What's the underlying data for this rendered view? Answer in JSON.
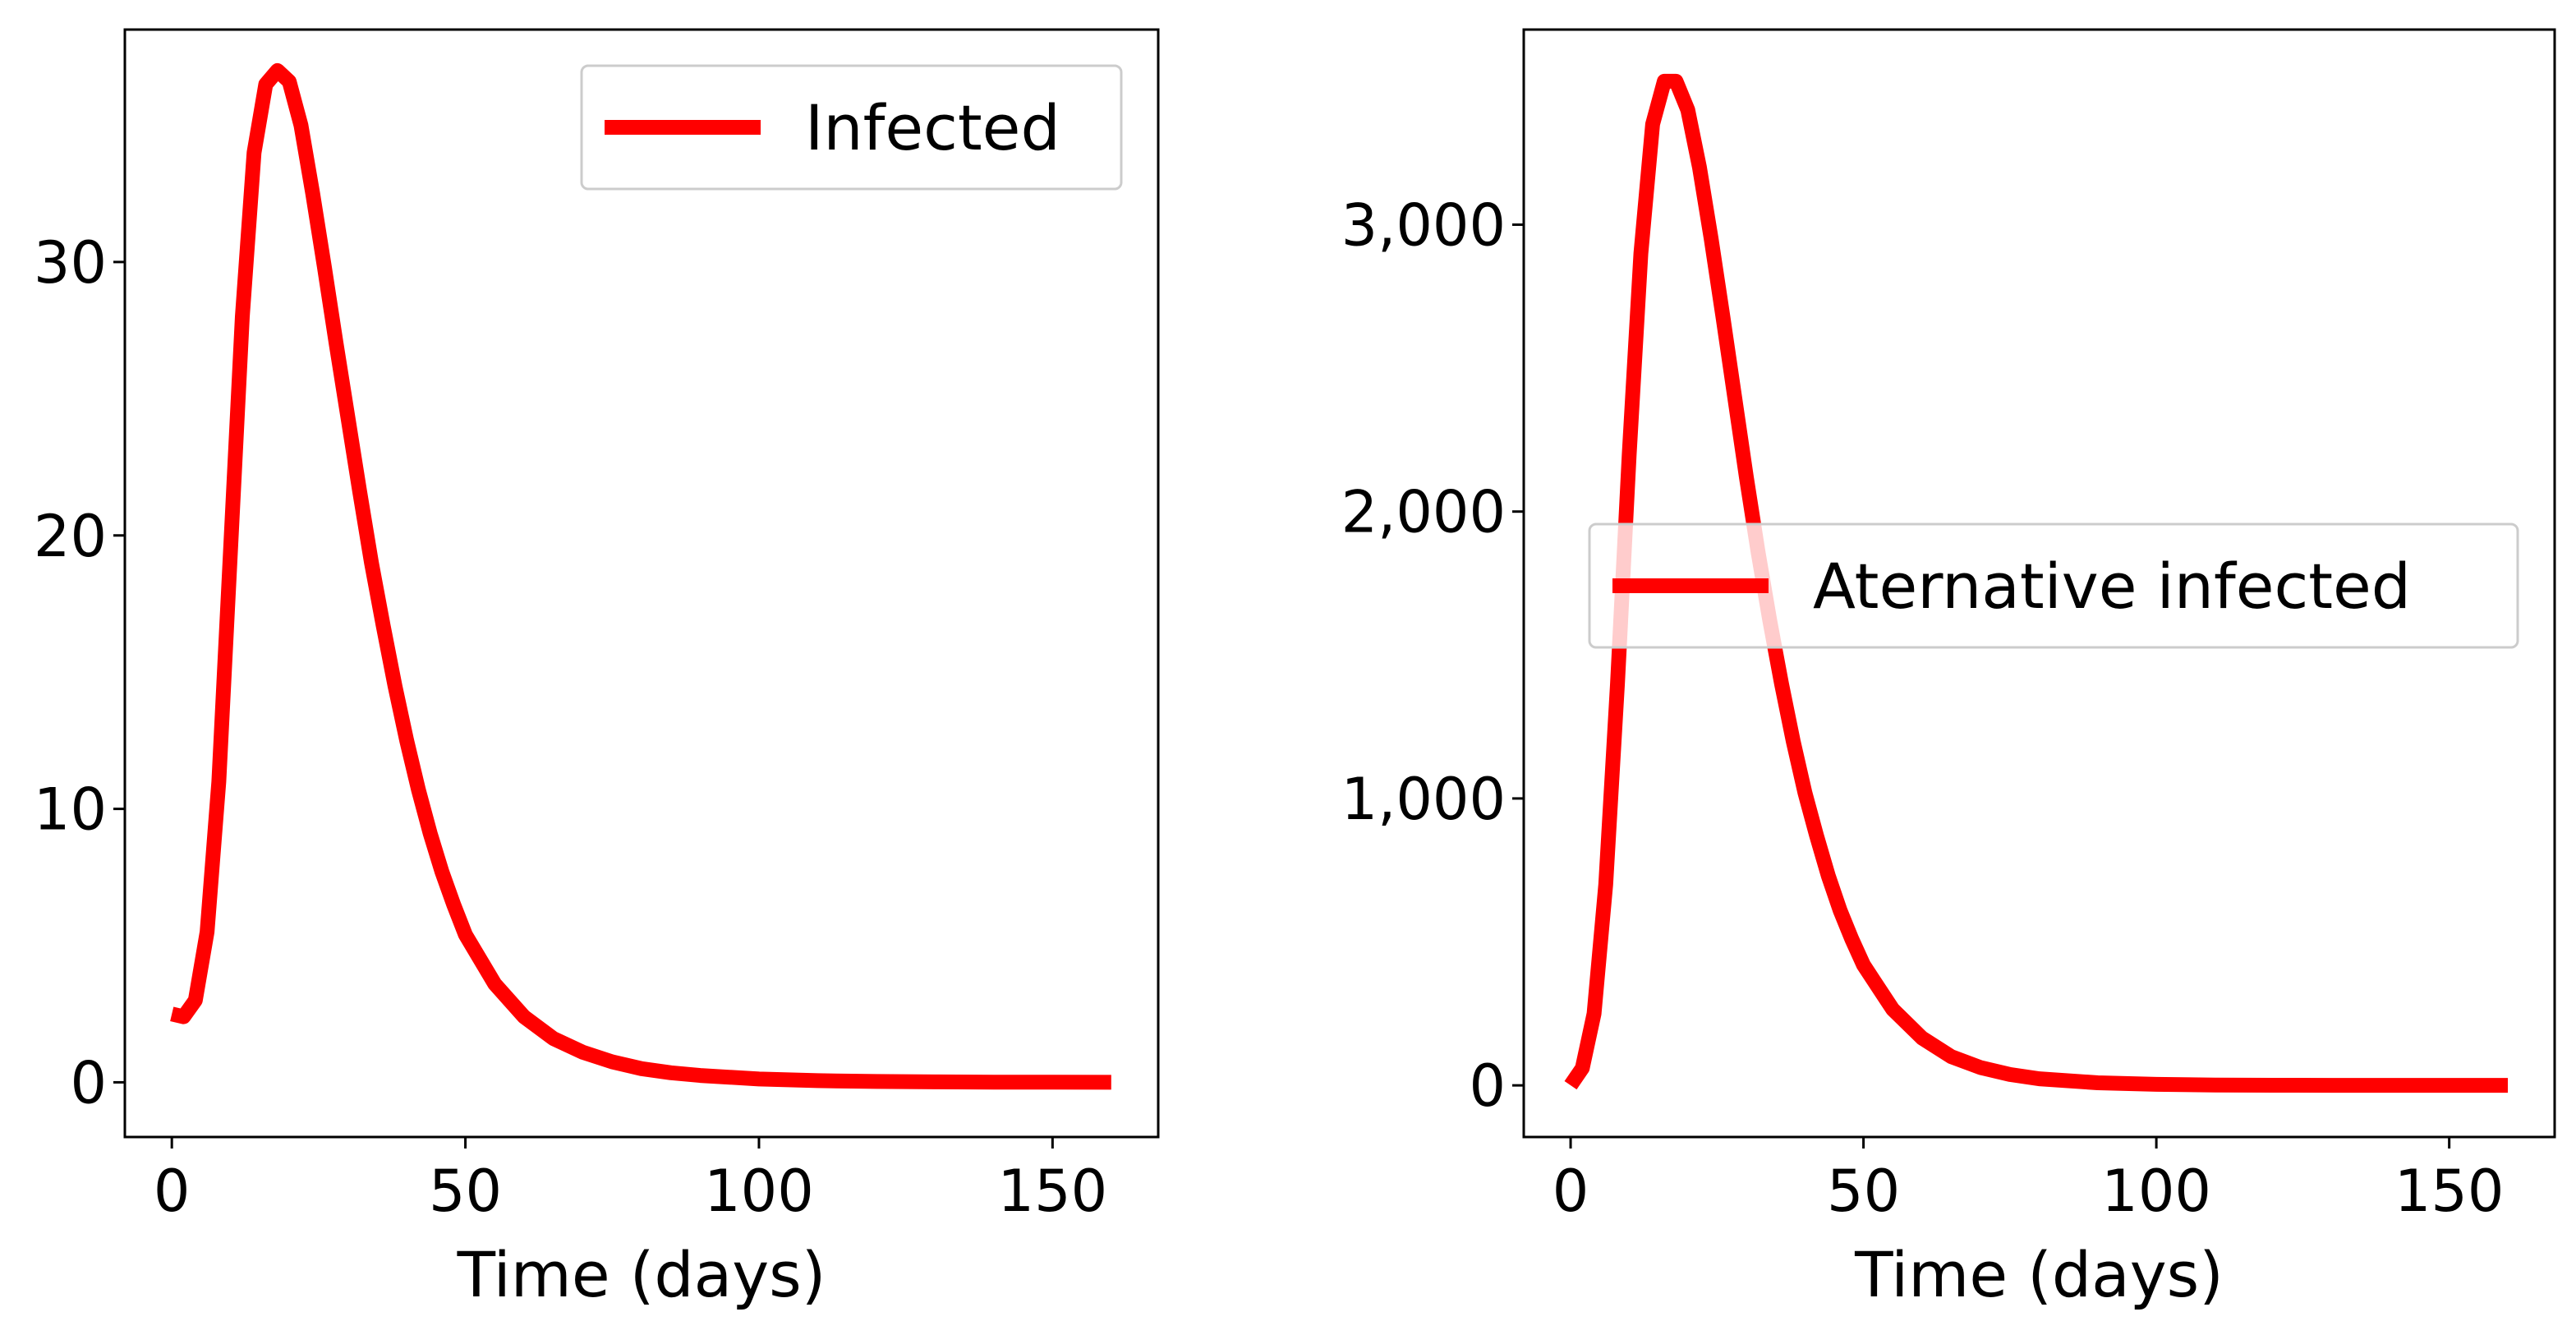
{
  "chart_data": [
    {
      "type": "line",
      "title": "",
      "xlabel": "Time (days)",
      "ylabel": "",
      "xlim": [
        -8,
        168
      ],
      "ylim": [
        -2,
        38.5
      ],
      "xticks": [
        0,
        50,
        100,
        150
      ],
      "xtick_labels": [
        "0",
        "50",
        "100",
        "150"
      ],
      "yticks": [
        0,
        10,
        20,
        30
      ],
      "ytick_labels": [
        "0",
        "10",
        "20",
        "30"
      ],
      "legend_position": "upper-right",
      "series": [
        {
          "name": "Infected",
          "color": "#ff0000",
          "x": [
            0,
            2,
            4,
            6,
            8,
            10,
            12,
            14,
            16,
            18,
            20,
            22,
            24,
            26,
            28,
            30,
            32,
            34,
            36,
            38,
            40,
            42,
            44,
            46,
            48,
            50,
            55,
            60,
            65,
            70,
            75,
            80,
            85,
            90,
            100,
            110,
            120,
            130,
            140,
            150,
            160
          ],
          "y": [
            2.5,
            2.4,
            3.0,
            5.5,
            11.0,
            19.5,
            28.0,
            34.0,
            36.5,
            37.0,
            36.6,
            35.0,
            32.5,
            29.8,
            27.0,
            24.3,
            21.6,
            19.0,
            16.7,
            14.5,
            12.5,
            10.7,
            9.1,
            7.7,
            6.5,
            5.4,
            3.6,
            2.4,
            1.6,
            1.1,
            0.75,
            0.5,
            0.35,
            0.25,
            0.12,
            0.06,
            0.03,
            0.015,
            0.008,
            0.004,
            0.002
          ]
        }
      ]
    },
    {
      "type": "line",
      "title": "",
      "xlabel": "Time (days)",
      "ylabel": "",
      "xlim": [
        -8,
        168
      ],
      "ylim": [
        -180,
        3680
      ],
      "xticks": [
        0,
        50,
        100,
        150
      ],
      "xtick_labels": [
        "0",
        "50",
        "100",
        "150"
      ],
      "yticks": [
        0,
        1000,
        2000,
        3000
      ],
      "ytick_labels": [
        "0",
        "1,000",
        "2,000",
        "3,000"
      ],
      "legend_position": "center-right",
      "series": [
        {
          "name": "Aternative infected",
          "color": "#ff0000",
          "x": [
            0,
            2,
            4,
            6,
            8,
            10,
            12,
            14,
            16,
            18,
            20,
            22,
            24,
            26,
            28,
            30,
            32,
            34,
            36,
            38,
            40,
            42,
            44,
            46,
            48,
            50,
            55,
            60,
            65,
            70,
            75,
            80,
            90,
            100,
            110,
            120,
            130,
            140,
            150,
            160
          ],
          "y": [
            0,
            60,
            250,
            700,
            1400,
            2200,
            2900,
            3350,
            3500,
            3500,
            3400,
            3200,
            2950,
            2680,
            2400,
            2120,
            1860,
            1620,
            1400,
            1200,
            1020,
            870,
            730,
            610,
            510,
            420,
            265,
            165,
            100,
            62,
            38,
            23,
            9,
            3.5,
            1.3,
            0.5,
            0.2,
            0.08,
            0.03,
            0.01
          ]
        }
      ]
    }
  ]
}
